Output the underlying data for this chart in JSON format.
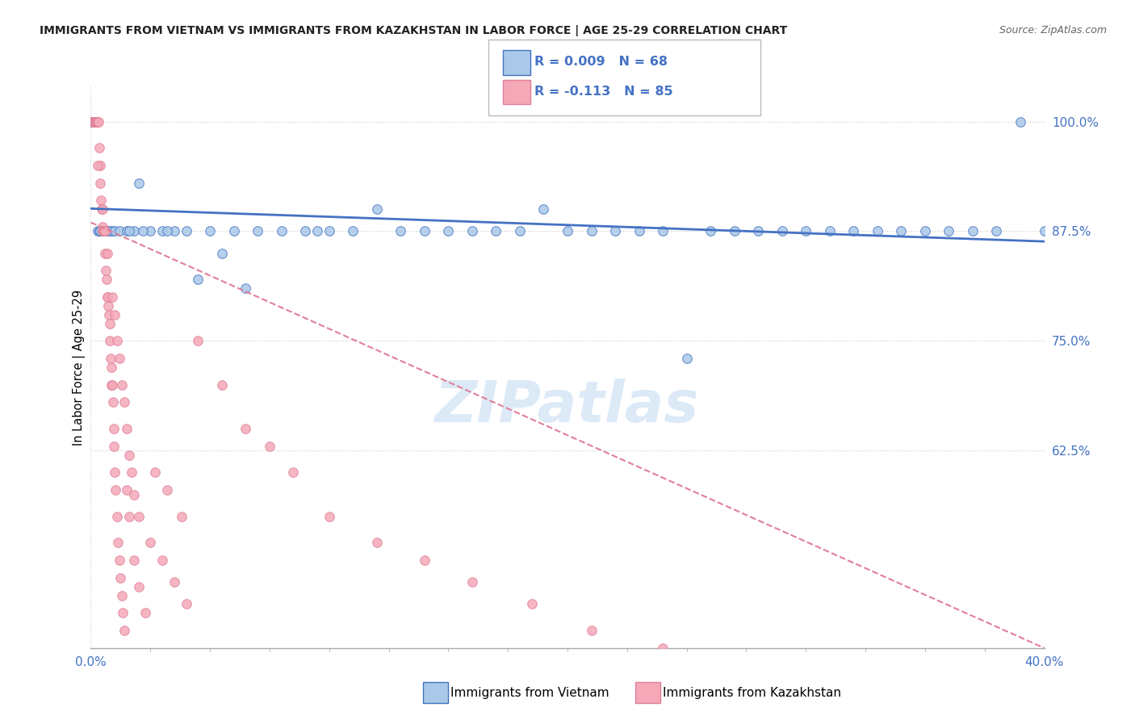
{
  "title": "IMMIGRANTS FROM VIETNAM VS IMMIGRANTS FROM KAZAKHSTAN IN LABOR FORCE | AGE 25-29 CORRELATION CHART",
  "source": "Source: ZipAtlas.com",
  "ylabel_label": "In Labor Force | Age 25-29",
  "legend_label1": "Immigrants from Vietnam",
  "legend_label2": "Immigrants from Kazakhstan",
  "r1": 0.009,
  "n1": 68,
  "r2": -0.113,
  "n2": 85,
  "xlim": [
    0.0,
    40.0
  ],
  "ylim": [
    40.0,
    104.0
  ],
  "yticks": [
    62.5,
    75.0,
    87.5,
    100.0
  ],
  "ytick_labels": [
    "62.5%",
    "75.0%",
    "87.5%",
    "100.0%"
  ],
  "color_vietnam": "#aac8e8",
  "color_kazakhstan": "#f4a8b8",
  "edge_vietnam": "#4472c4",
  "edge_kazakhstan": "#e08098",
  "trendline_vietnam": "#4472c4",
  "trendline_kazakhstan": "#e08098",
  "watermark_color": "#dce9f7",
  "background_color": "#ffffff",
  "vietnam_x": [
    0.05,
    0.08,
    0.1,
    0.12,
    0.15,
    0.18,
    0.2,
    0.25,
    0.3,
    0.35,
    0.4,
    0.5,
    0.6,
    0.7,
    0.8,
    0.9,
    1.0,
    1.2,
    1.5,
    1.8,
    2.0,
    2.5,
    3.0,
    3.5,
    4.0,
    4.5,
    5.0,
    5.5,
    6.0,
    7.0,
    8.0,
    9.0,
    10.0,
    11.0,
    12.0,
    13.0,
    15.0,
    17.0,
    19.0,
    21.0,
    23.0,
    25.0,
    27.0,
    29.0,
    31.0,
    33.0,
    35.0,
    37.0,
    39.0,
    16.0,
    20.0,
    22.0,
    24.0,
    26.0,
    28.0,
    30.0,
    32.0,
    34.0,
    36.0,
    38.0,
    40.0,
    6.5,
    9.5,
    14.0,
    18.0,
    3.2,
    2.2,
    1.6
  ],
  "vietnam_y": [
    100.0,
    100.0,
    100.0,
    100.0,
    100.0,
    100.0,
    100.0,
    100.0,
    87.5,
    87.5,
    87.5,
    87.5,
    87.5,
    87.5,
    87.5,
    87.5,
    87.5,
    87.5,
    87.5,
    87.5,
    93.0,
    87.5,
    87.5,
    87.5,
    87.5,
    82.0,
    87.5,
    85.0,
    87.5,
    87.5,
    87.5,
    87.5,
    87.5,
    87.5,
    90.0,
    87.5,
    87.5,
    87.5,
    90.0,
    87.5,
    87.5,
    73.0,
    87.5,
    87.5,
    87.5,
    87.5,
    87.5,
    87.5,
    100.0,
    87.5,
    87.5,
    87.5,
    87.5,
    87.5,
    87.5,
    87.5,
    87.5,
    87.5,
    87.5,
    87.5,
    87.5,
    81.0,
    87.5,
    87.5,
    87.5,
    87.5,
    87.5,
    87.5
  ],
  "kazakhstan_x": [
    0.05,
    0.08,
    0.1,
    0.12,
    0.15,
    0.18,
    0.2,
    0.22,
    0.25,
    0.28,
    0.3,
    0.32,
    0.35,
    0.38,
    0.4,
    0.42,
    0.45,
    0.48,
    0.5,
    0.52,
    0.55,
    0.58,
    0.6,
    0.62,
    0.65,
    0.68,
    0.7,
    0.72,
    0.75,
    0.78,
    0.8,
    0.82,
    0.85,
    0.88,
    0.9,
    0.92,
    0.95,
    0.98,
    1.0,
    1.05,
    1.1,
    1.15,
    1.2,
    1.25,
    1.3,
    1.35,
    1.4,
    1.5,
    1.6,
    1.8,
    2.0,
    2.3,
    2.7,
    3.2,
    3.8,
    4.5,
    5.5,
    6.5,
    7.5,
    8.5,
    10.0,
    12.0,
    14.0,
    16.0,
    18.5,
    21.0,
    24.0,
    0.3,
    0.5,
    0.7,
    0.9,
    1.0,
    1.1,
    1.2,
    1.3,
    1.4,
    1.5,
    1.6,
    1.7,
    1.8,
    2.0,
    2.5,
    3.0,
    3.5,
    4.0
  ],
  "kazakhstan_y": [
    100.0,
    100.0,
    100.0,
    100.0,
    100.0,
    100.0,
    100.0,
    100.0,
    100.0,
    100.0,
    100.0,
    100.0,
    97.0,
    95.0,
    93.0,
    91.0,
    90.0,
    88.0,
    87.5,
    87.5,
    87.5,
    87.5,
    85.0,
    83.0,
    82.0,
    80.0,
    80.0,
    79.0,
    78.0,
    77.0,
    75.0,
    73.0,
    72.0,
    70.0,
    70.0,
    68.0,
    65.0,
    63.0,
    60.0,
    58.0,
    55.0,
    52.0,
    50.0,
    48.0,
    46.0,
    44.0,
    42.0,
    58.0,
    55.0,
    50.0,
    47.0,
    44.0,
    60.0,
    58.0,
    55.0,
    75.0,
    70.0,
    65.0,
    63.0,
    60.0,
    55.0,
    52.0,
    50.0,
    47.5,
    45.0,
    42.0,
    40.0,
    95.0,
    90.0,
    85.0,
    80.0,
    78.0,
    75.0,
    73.0,
    70.0,
    68.0,
    65.0,
    62.0,
    60.0,
    57.5,
    55.0,
    52.0,
    50.0,
    47.5,
    45.0
  ]
}
